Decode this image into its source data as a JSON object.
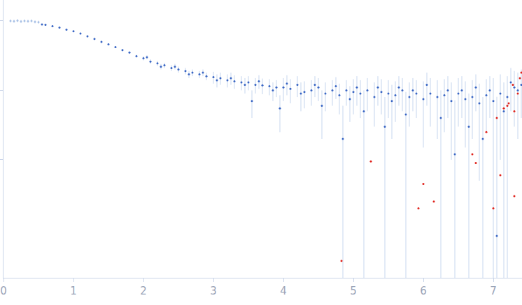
{
  "chart_data": {
    "type": "scatter",
    "log": "y",
    "grid": false,
    "tick_labels": "x",
    "xlim": [
      0,
      7.41
    ],
    "xticks": [
      0,
      1,
      2,
      3,
      4,
      5,
      6,
      7
    ],
    "ylim": [
      0.0002,
      2
    ],
    "yticks": [
      0.01,
      0.1,
      1
    ],
    "series": [
      {
        "color": "#a9c1e6",
        "marker": "circle",
        "x": [
          0.1,
          0.15,
          0.2,
          0.25,
          0.3,
          0.35,
          0.4,
          0.45,
          0.5
        ],
        "values": [
          1.0,
          0.99,
          1.01,
          0.98,
          1.0,
          0.99,
          1.0,
          0.97,
          0.96
        ],
        "error": [
          0.05,
          0.05,
          0.05,
          0.05,
          0.05,
          0.05,
          0.05,
          0.05,
          0.05
        ]
      },
      {
        "color": "#3a66c4",
        "marker": "circle",
        "x": [
          0.55,
          0.6,
          0.7,
          0.8,
          0.9,
          1.0,
          1.1,
          1.2,
          1.3,
          1.4,
          1.5,
          1.6,
          1.7,
          1.8,
          1.9,
          2.0,
          2.05,
          2.1,
          2.2,
          2.25,
          2.3,
          2.4,
          2.45,
          2.5,
          2.6,
          2.65,
          2.7,
          2.8,
          2.85,
          2.9,
          3.0,
          3.05,
          3.1,
          3.2,
          3.25,
          3.3,
          3.4,
          3.45,
          3.5,
          3.55,
          3.6,
          3.65,
          3.7,
          3.8,
          3.85,
          3.9,
          3.95,
          4.0,
          4.05,
          4.1,
          4.2,
          4.25,
          4.3,
          4.4,
          4.45,
          4.5,
          4.55,
          4.6,
          4.7,
          4.75,
          4.8,
          4.85,
          4.9,
          4.95,
          5.0,
          5.05,
          5.1,
          5.15,
          5.2,
          5.3,
          5.35,
          5.4,
          5.45,
          5.5,
          5.55,
          5.6,
          5.65,
          5.7,
          5.75,
          5.8,
          5.85,
          5.9,
          6.0,
          6.05,
          6.1,
          6.2,
          6.25,
          6.3,
          6.35,
          6.4,
          6.45,
          6.5,
          6.55,
          6.6,
          6.65,
          6.7,
          6.75,
          6.8,
          6.85,
          6.9,
          6.95,
          7.0,
          7.05,
          7.1,
          7.15,
          7.2,
          7.25,
          7.3,
          7.35,
          7.4
        ],
        "values": [
          0.89,
          0.88,
          0.84,
          0.8,
          0.75,
          0.71,
          0.66,
          0.6,
          0.55,
          0.5,
          0.46,
          0.42,
          0.38,
          0.35,
          0.31,
          0.29,
          0.3,
          0.26,
          0.245,
          0.22,
          0.23,
          0.21,
          0.22,
          0.2,
          0.19,
          0.17,
          0.18,
          0.17,
          0.18,
          0.16,
          0.155,
          0.14,
          0.15,
          0.14,
          0.15,
          0.135,
          0.13,
          0.12,
          0.13,
          0.07,
          0.12,
          0.135,
          0.118,
          0.115,
          0.1,
          0.11,
          0.055,
          0.11,
          0.125,
          0.105,
          0.12,
          0.09,
          0.095,
          0.1,
          0.12,
          0.11,
          0.06,
          0.09,
          0.1,
          0.115,
          0.085,
          0.02,
          0.1,
          0.075,
          0.095,
          0.11,
          0.09,
          0.05,
          0.1,
          0.08,
          0.11,
          0.095,
          0.03,
          0.09,
          0.07,
          0.085,
          0.11,
          0.1,
          0.045,
          0.08,
          0.1,
          0.09,
          0.075,
          0.12,
          0.09,
          0.08,
          0.04,
          0.085,
          0.1,
          0.07,
          0.012,
          0.09,
          0.1,
          0.075,
          0.03,
          0.08,
          0.11,
          0.065,
          0.02,
          0.085,
          0.1,
          0.07,
          0.0008,
          0.09,
          0.05,
          0.08,
          0.13,
          0.11,
          0.1,
          0.12
        ],
        "error": [
          0.02,
          0.02,
          0.02,
          0.02,
          0.02,
          0.02,
          0.02,
          0.02,
          0.02,
          0.02,
          0.015,
          0.015,
          0.015,
          0.015,
          0.015,
          0.02,
          0.02,
          0.02,
          0.02,
          0.02,
          0.02,
          0.02,
          0.02,
          0.02,
          0.02,
          0.02,
          0.02,
          0.02,
          0.02,
          0.02,
          0.03,
          0.03,
          0.03,
          0.03,
          0.03,
          0.03,
          0.03,
          0.03,
          0.03,
          0.03,
          0.03,
          0.03,
          0.03,
          0.03,
          0.03,
          0.03,
          0.03,
          0.04,
          0.04,
          0.04,
          0.04,
          0.04,
          0.04,
          0.04,
          0.04,
          0.04,
          0.04,
          0.04,
          0.04,
          0.04,
          0.04,
          0.04,
          0.04,
          0.04,
          0.05,
          0.05,
          0.05,
          0.05,
          0.05,
          0.05,
          0.05,
          0.05,
          0.05,
          0.05,
          0.05,
          0.05,
          0.05,
          0.05,
          0.05,
          0.05,
          0.05,
          0.05,
          0.06,
          0.06,
          0.06,
          0.06,
          0.06,
          0.06,
          0.06,
          0.06,
          0.06,
          0.06,
          0.06,
          0.06,
          0.06,
          0.06,
          0.06,
          0.06,
          0.06,
          0.06,
          0.06,
          0.08,
          0.08,
          0.08,
          0.08,
          0.08,
          0.08,
          0.08,
          0.08,
          0.08
        ]
      },
      {
        "color": "#e0231c",
        "marker": "circle",
        "x": [
          4.83,
          5.25,
          5.93,
          6.0,
          6.15,
          6.7,
          6.75,
          6.9,
          7.0,
          7.05,
          7.1,
          7.15,
          7.2,
          7.22,
          7.28,
          7.3,
          7.3,
          7.35,
          7.38,
          7.4
        ],
        "values": [
          0.00035,
          0.0095,
          0.002,
          0.0045,
          0.0025,
          0.012,
          0.009,
          0.025,
          0.002,
          0.04,
          0.006,
          0.055,
          0.06,
          0.065,
          0.12,
          0.05,
          0.003,
          0.09,
          0.15,
          0.18
        ]
      }
    ]
  }
}
